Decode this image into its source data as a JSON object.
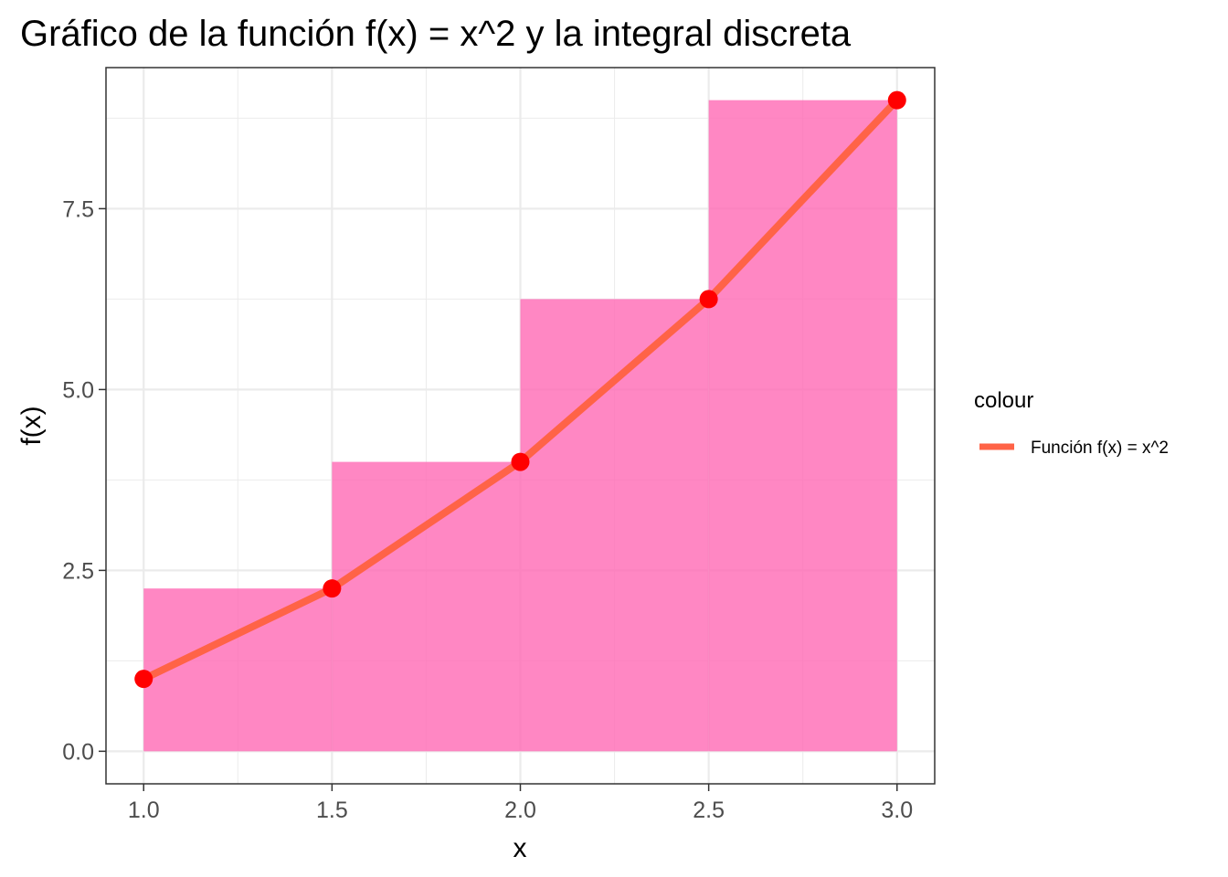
{
  "chart_data": {
    "type": "bar",
    "title": "Gráfico de la función f(x) = x^2 y la integral discreta",
    "xlabel": "x",
    "ylabel": "f(x)",
    "xlim": [
      0.9,
      3.1
    ],
    "ylim": [
      -0.45,
      9.45
    ],
    "x_ticks": [
      1.0,
      1.5,
      2.0,
      2.5,
      3.0
    ],
    "x_tick_labels": [
      "1.0",
      "1.5",
      "2.0",
      "2.5",
      "3.0"
    ],
    "y_ticks": [
      0,
      2.5,
      5,
      7.5
    ],
    "y_tick_labels": [
      "0.0",
      "2.5",
      "5.0",
      "7.5"
    ],
    "grid": true,
    "bars": {
      "color": "#ff69b4",
      "opacity": 0.8,
      "values": [
        {
          "x_start": 1.0,
          "x_end": 1.5,
          "height": 2.25
        },
        {
          "x_start": 1.5,
          "x_end": 2.0,
          "height": 4.0
        },
        {
          "x_start": 2.0,
          "x_end": 2.5,
          "height": 6.25
        },
        {
          "x_start": 2.5,
          "x_end": 3.0,
          "height": 9.0
        }
      ]
    },
    "series": [
      {
        "name": "Función f(x) = x^2",
        "type": "line",
        "color": "#ff6347",
        "x": [
          1.0,
          1.5,
          2.0,
          2.5,
          3.0
        ],
        "y": [
          1.0,
          2.25,
          4.0,
          6.25,
          9.0
        ]
      }
    ],
    "points": {
      "color": "#ff0000",
      "x": [
        1.0,
        1.5,
        2.0,
        2.5,
        3.0
      ],
      "y": [
        1.0,
        2.25,
        4.0,
        6.25,
        9.0
      ]
    },
    "legend": {
      "title": "colour",
      "placement": "right",
      "entries": [
        {
          "label": "Función f(x) = x^2",
          "color": "#ff6347"
        }
      ]
    }
  }
}
